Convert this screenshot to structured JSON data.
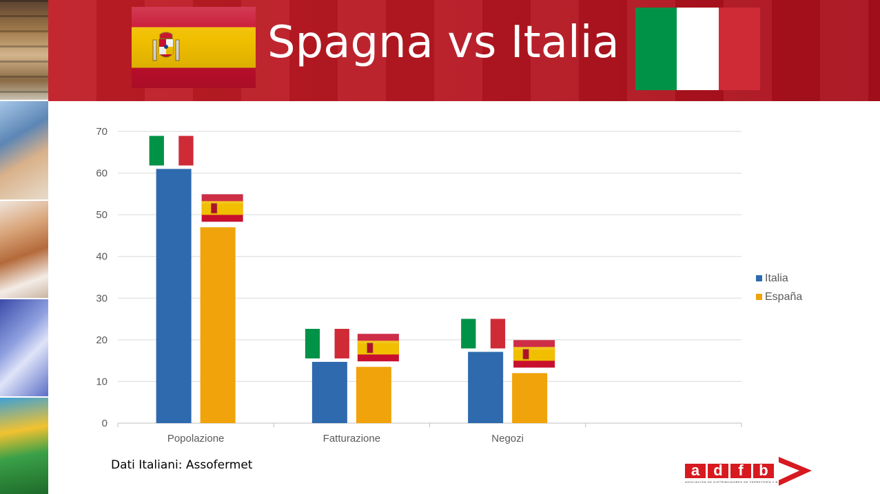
{
  "header": {
    "title": "Spagna vs Italia"
  },
  "colors": {
    "italia": "#2e6aad",
    "espana": "#f0a30a",
    "header_red": "#b81822",
    "grid": "#d9d9d9"
  },
  "chart_data": {
    "type": "bar",
    "categories": [
      "Popolazione",
      "Fatturazione",
      "Negozi"
    ],
    "series": [
      {
        "name": "Italia",
        "values": [
          61,
          14.7,
          17.1
        ],
        "color": "#2e6aad"
      },
      {
        "name": "España",
        "values": [
          47,
          13.5,
          12
        ],
        "color": "#f0a30a"
      }
    ],
    "ylim": [
      0,
      70
    ],
    "yticks": [
      0,
      10,
      20,
      30,
      40,
      50,
      60,
      70
    ],
    "grid": true,
    "legend": {
      "position": "right",
      "entries": [
        "Italia",
        "España"
      ]
    },
    "annotations": "flag icon above each bar (Italian flag over Italia bars, Spanish flag over España bars)"
  },
  "source_note": "Dati Italiani: Assofermet",
  "logo": {
    "letters": [
      "a",
      "d",
      "f",
      "b"
    ],
    "tagline": "ASOCIACIÓN DE DISTRIBUIDORES DE FERRETERÍA Y BRICOLAGE"
  }
}
